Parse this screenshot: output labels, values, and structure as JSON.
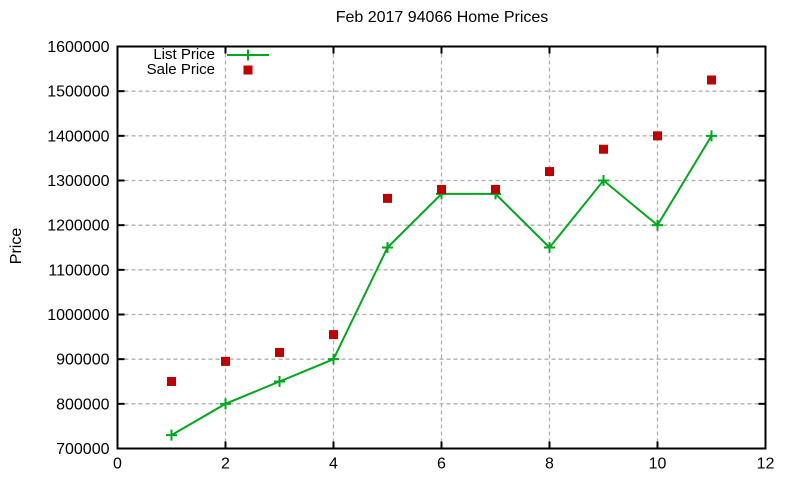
{
  "window": {
    "background": "#ffffff"
  },
  "chart_data": {
    "type": "line",
    "title": "Feb 2017 94066 Home Prices",
    "xlabel": "",
    "ylabel": "Price",
    "xlim": [
      0,
      12
    ],
    "ylim": [
      700000,
      1600000
    ],
    "x_tick_step": 2,
    "y_tick_step": 100000,
    "grid": true,
    "legend_position": "top-left-inside",
    "x": [
      1,
      2,
      3,
      4,
      5,
      6,
      7,
      8,
      9,
      10,
      11
    ],
    "series": [
      {
        "name": "List Price",
        "style": "linespoints",
        "marker": "plus",
        "color": "#00a81e",
        "values": [
          730000,
          800000,
          850000,
          900000,
          1150000,
          1270000,
          1270000,
          1150000,
          1300000,
          1200000,
          1400000
        ]
      },
      {
        "name": "Sale Price",
        "style": "points",
        "marker": "square",
        "color": "#c00000",
        "values": [
          850000,
          895000,
          915000,
          955000,
          1260000,
          1280000,
          1280000,
          1320000,
          1370000,
          1400000,
          1525000
        ]
      }
    ],
    "axis_color": "#000000",
    "grid_color": "#b0b0b0",
    "text_color": "#000000"
  }
}
